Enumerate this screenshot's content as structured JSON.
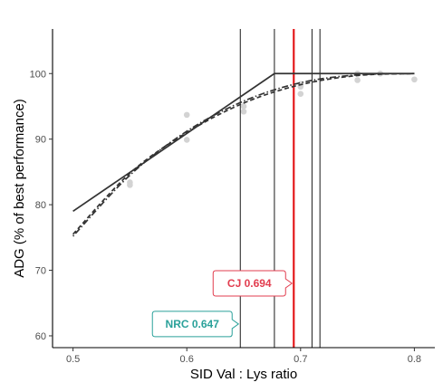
{
  "chart_data": {
    "type": "scatter",
    "title": "",
    "xlabel": "SID Val : Lys ratio",
    "ylabel": "ADG (% of best performance)",
    "xlim": [
      0.482,
      0.818
    ],
    "ylim": [
      58.2,
      106.8
    ],
    "x_ticks": [
      0.5,
      0.6,
      0.7,
      0.8
    ],
    "x_tick_labels": [
      "0.5",
      "0.6",
      "0.7",
      "0.8"
    ],
    "y_ticks": [
      60,
      70,
      80,
      90,
      100
    ],
    "y_tick_labels": [
      "60",
      "70",
      "80",
      "90",
      "100"
    ],
    "grid": false,
    "points": {
      "color": "#d3d3d3",
      "x": [
        0.55,
        0.55,
        0.6,
        0.6,
        0.65,
        0.65,
        0.7,
        0.7,
        0.7,
        0.75,
        0.75,
        0.77,
        0.8
      ],
      "y": [
        83.0,
        83.4,
        93.7,
        89.9,
        94.2,
        95.0,
        96.9,
        98.0,
        98.4,
        99.0,
        100.0,
        100.0,
        99.1
      ]
    },
    "series": [
      {
        "style": "solid",
        "color": "#333333",
        "x": [
          0.5,
          0.677,
          0.8
        ],
        "y": [
          79.0,
          100.0,
          100.0
        ]
      },
      {
        "style": "dashed",
        "color": "#333333",
        "x": [
          0.5,
          0.55,
          0.6,
          0.65,
          0.7,
          0.75,
          0.8
        ],
        "y": [
          75.5,
          84.8,
          91.0,
          95.5,
          98.3,
          99.7,
          100.0
        ]
      },
      {
        "style": "dotdash",
        "color": "#333333",
        "x": [
          0.5,
          0.55,
          0.6,
          0.65,
          0.7,
          0.75,
          0.8
        ],
        "y": [
          75.2,
          84.5,
          91.2,
          95.8,
          98.6,
          99.8,
          100.0
        ]
      }
    ],
    "vertical_lines": [
      {
        "x": 0.647,
        "color": "#000000"
      },
      {
        "x": 0.677,
        "color": "#000000"
      },
      {
        "x": 0.694,
        "color": "#e31a1c"
      },
      {
        "x": 0.71,
        "color": "#000000"
      },
      {
        "x": 0.717,
        "color": "#000000"
      }
    ],
    "annotations": [
      {
        "label": "CJ 0.694",
        "x": 0.694,
        "y": 68,
        "color": "#e23d4f"
      },
      {
        "label": "NRC 0.647",
        "x": 0.647,
        "y": 61.8,
        "color": "#2aa19a"
      }
    ]
  }
}
